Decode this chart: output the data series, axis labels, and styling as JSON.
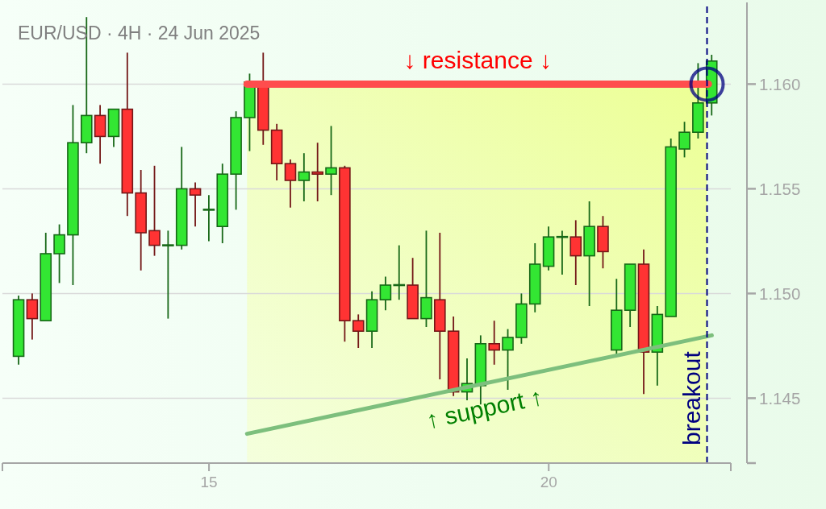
{
  "chart_data": {
    "type": "candlestick",
    "title": "EUR/USD · 4H · 24 Jun 2025",
    "x": [
      12.2,
      12.4,
      12.6,
      12.8,
      13.0,
      13.2,
      13.4,
      13.6,
      13.8,
      14.0,
      14.2,
      14.4,
      14.6,
      14.8,
      15.0,
      15.2,
      15.4,
      15.6,
      15.8,
      16.0,
      16.2,
      16.4,
      16.6,
      16.8,
      17.0,
      17.2,
      17.4,
      17.6,
      17.8,
      18.0,
      18.2,
      18.4,
      18.6,
      18.8,
      19.0,
      19.2,
      19.4,
      19.6,
      19.8,
      20.0,
      20.2,
      20.4,
      20.6,
      20.8,
      21.0,
      21.2,
      21.4,
      21.6,
      21.8,
      22.0,
      22.2,
      22.4
    ],
    "ohlc": [
      [
        1.147,
        1.1499,
        1.1466,
        1.1497
      ],
      [
        1.1497,
        1.15,
        1.1478,
        1.1488
      ],
      [
        1.1487,
        1.1529,
        1.1487,
        1.1519
      ],
      [
        1.1519,
        1.1533,
        1.1505,
        1.1528
      ],
      [
        1.1528,
        1.159,
        1.1504,
        1.1572
      ],
      [
        1.1572,
        1.1632,
        1.1567,
        1.1585
      ],
      [
        1.1585,
        1.159,
        1.1562,
        1.1575
      ],
      [
        1.1575,
        1.1588,
        1.157,
        1.1588
      ],
      [
        1.1588,
        1.1615,
        1.1537,
        1.1548
      ],
      [
        1.1548,
        1.1559,
        1.1511,
        1.1529
      ],
      [
        1.153,
        1.1561,
        1.1518,
        1.1523
      ],
      [
        1.1523,
        1.153,
        1.1488,
        1.1523
      ],
      [
        1.1523,
        1.157,
        1.1521,
        1.155
      ],
      [
        1.155,
        1.1553,
        1.1532,
        1.1547
      ],
      [
        1.154,
        1.1547,
        1.1525,
        1.154
      ],
      [
        1.1532,
        1.1562,
        1.1524,
        1.1557
      ],
      [
        1.1557,
        1.1587,
        1.154,
        1.1584
      ],
      [
        1.1584,
        1.1605,
        1.1568,
        1.1601
      ],
      [
        1.1601,
        1.1615,
        1.1571,
        1.1578
      ],
      [
        1.1578,
        1.1581,
        1.1554,
        1.1562
      ],
      [
        1.1562,
        1.1564,
        1.1541,
        1.1554
      ],
      [
        1.1554,
        1.1567,
        1.1544,
        1.1558
      ],
      [
        1.1558,
        1.1572,
        1.1544,
        1.1557
      ],
      [
        1.1557,
        1.158,
        1.1547,
        1.156
      ],
      [
        1.156,
        1.1561,
        1.1477,
        1.1487
      ],
      [
        1.1487,
        1.149,
        1.1474,
        1.1482
      ],
      [
        1.1482,
        1.1501,
        1.1474,
        1.1497
      ],
      [
        1.1497,
        1.1508,
        1.1492,
        1.1504
      ],
      [
        1.1504,
        1.1523,
        1.1497,
        1.1504
      ],
      [
        1.1504,
        1.1517,
        1.1488,
        1.1488
      ],
      [
        1.1488,
        1.153,
        1.1484,
        1.1498
      ],
      [
        1.1497,
        1.1529,
        1.1459,
        1.1482
      ],
      [
        1.1482,
        1.1489,
        1.1451,
        1.1453
      ],
      [
        1.1453,
        1.1469,
        1.1449,
        1.1457
      ],
      [
        1.1456,
        1.148,
        1.1447,
        1.1476
      ],
      [
        1.1476,
        1.1487,
        1.1466,
        1.1473
      ],
      [
        1.1473,
        1.1483,
        1.1454,
        1.1479
      ],
      [
        1.1479,
        1.15,
        1.1476,
        1.1495
      ],
      [
        1.1495,
        1.1524,
        1.1491,
        1.1514
      ],
      [
        1.1513,
        1.1532,
        1.1511,
        1.1527
      ],
      [
        1.1527,
        1.153,
        1.1509,
        1.1527
      ],
      [
        1.1527,
        1.1535,
        1.1504,
        1.1518
      ],
      [
        1.1518,
        1.1544,
        1.1494,
        1.1532
      ],
      [
        1.1532,
        1.1537,
        1.1512,
        1.152
      ],
      [
        1.1473,
        1.1507,
        1.1471,
        1.1492
      ],
      [
        1.1492,
        1.1514,
        1.1484,
        1.1514
      ],
      [
        1.1514,
        1.1521,
        1.1452,
        1.1472
      ],
      [
        1.1472,
        1.1494,
        1.1456,
        1.149
      ],
      [
        1.1489,
        1.1574,
        1.1489,
        1.157
      ],
      [
        1.1569,
        1.1582,
        1.1565,
        1.1577
      ],
      [
        1.1577,
        1.161,
        1.1574,
        1.1591
      ],
      [
        1.1591,
        1.1614,
        1.1585,
        1.1611
      ]
    ],
    "colors": [
      "#33e633",
      "#ff3333",
      "#33e633",
      "#33e633",
      "#33e633",
      "#33e633",
      "#ff3333",
      "#33e633",
      "#ff3333",
      "#ff3333",
      "#ff3333",
      "#33e633",
      "#33e633",
      "#ff3333",
      "#33e633",
      "#33e633",
      "#33e633",
      "#33e633",
      "#ff3333",
      "#ff3333",
      "#ff3333",
      "#33e633",
      "#ff3333",
      "#33e633",
      "#ff3333",
      "#ff3333",
      "#33e633",
      "#33e633",
      "#33e633",
      "#ff3333",
      "#33e633",
      "#ff3333",
      "#ff3333",
      "#33e633",
      "#33e633",
      "#ff3333",
      "#33e633",
      "#33e633",
      "#33e633",
      "#33e633",
      "#33e633",
      "#ff3333",
      "#33e633",
      "#ff3333",
      "#33e633",
      "#33e633",
      "#ff3333",
      "#33e633",
      "#33e633",
      "#33e633",
      "#33e633",
      "#33e633"
    ],
    "xlim": [
      11.96,
      22.68
    ],
    "xticks": [
      {
        "value": 11.96,
        "label": null
      },
      15,
      20,
      {
        "value": 22.68,
        "label": null
      }
    ],
    "ylim": [
      1.1419,
      1.1639
    ],
    "yticks": [
      {
        "value": 1.1419,
        "label": null
      },
      1.145,
      {
        "value": 1.15,
        "label": "1.150"
      },
      1.155,
      {
        "value": 1.16,
        "label": "1.160"
      }
    ],
    "grid": "y",
    "series": [
      {
        "type": "line",
        "name": "↓ resistance ↓",
        "color": "#ff4d4d",
        "x": [
          15.56,
          22.35
        ],
        "values": [
          1.16,
          1.16
        ]
      },
      {
        "type": "line",
        "name": "↑ support ↑",
        "color": "#7dbf7d",
        "x": [
          15.56,
          22.4
        ],
        "values": [
          1.1433,
          1.148
        ]
      }
    ],
    "ref_lines": [
      {
        "axis": "x",
        "value": 22.33,
        "label": "breakout",
        "color": "#000080",
        "line_style": "dashed"
      }
    ]
  }
}
